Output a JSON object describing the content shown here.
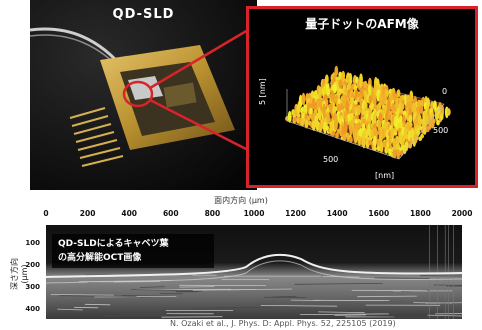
{
  "photo": {
    "title": "QD-SLD"
  },
  "afm": {
    "title": "量子ドットのAFM像",
    "z_label": "5 [nm]",
    "x_label": "500",
    "y_label_0": "0",
    "y_label_500": "500",
    "unit_label": "[nm]"
  },
  "inplane_label": "面内方向 (μm)",
  "oct": {
    "label_line1": "QD-SLDによるキャベツ葉",
    "label_line2": "の高分解能OCT画像",
    "x_ticks": [
      "0",
      "200",
      "400",
      "600",
      "800",
      "1000",
      "1200",
      "1400",
      "1600",
      "1800",
      "2000"
    ],
    "y_ticks": [
      "100",
      "200",
      "300",
      "400"
    ],
    "y_axis_label": "深さ方向 (μm)"
  },
  "citation": "N. Ozaki et al., J. Phys. D: Appl. Phys. 52, 225105 (2019)",
  "colors": {
    "frame_red": "#d8232a",
    "afm_orange": "#e8871e"
  }
}
